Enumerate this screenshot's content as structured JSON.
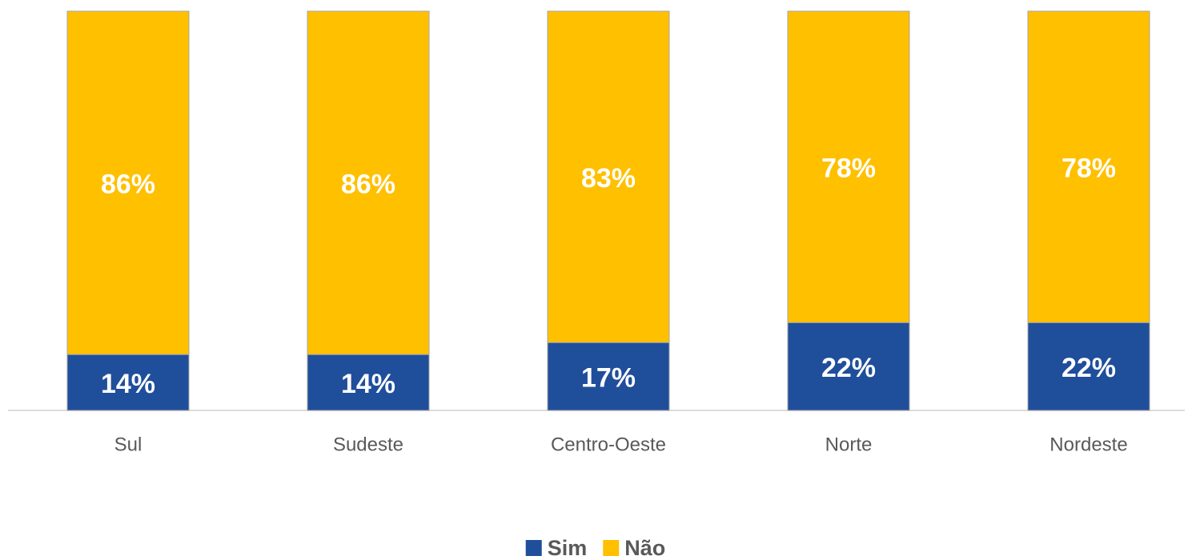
{
  "chart_data": {
    "type": "stacked_bar",
    "categories": [
      "Sul",
      "Sudeste",
      "Centro-Oeste",
      "Norte",
      "Nordeste"
    ],
    "series": [
      {
        "name": "Sim",
        "color": "#1f4e9b",
        "values": [
          14,
          14,
          17,
          22,
          22
        ],
        "value_labels": [
          "14%",
          "14%",
          "17%",
          "22%",
          "22%"
        ]
      },
      {
        "name": "Não",
        "color": "#ffc000",
        "values": [
          86,
          86,
          83,
          78,
          78
        ],
        "value_labels": [
          "86%",
          "86%",
          "83%",
          "78%",
          "78%"
        ]
      }
    ],
    "ylim": [
      0,
      100
    ],
    "legend": "bottom"
  }
}
